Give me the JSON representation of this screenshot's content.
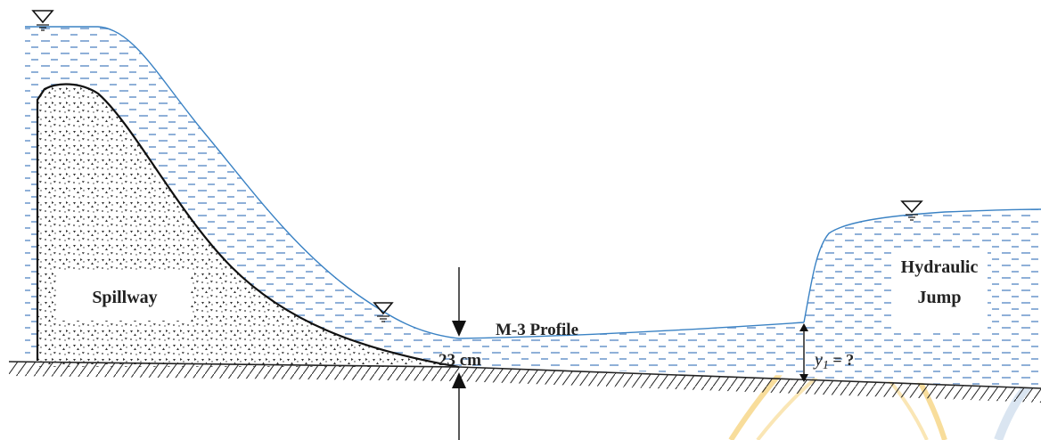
{
  "labels": {
    "spillway": "Spillway",
    "profile": "M-3 Profile",
    "depth": "23 cm",
    "jump_line1": "Hydraulic",
    "jump_line2": "Jump",
    "y1_symbol": "y",
    "y1_subscript": "1",
    "y1_rest": " = ?"
  },
  "icons": [
    "water-surface-triangle-icon"
  ],
  "colors": {
    "water_fill": "#eaf2f9",
    "water_dash": "#8fb0d8",
    "water_surface": "#3a82c4",
    "spillway_outline": "#111111",
    "ground": "#222222",
    "watermark": "#f3c24a"
  }
}
